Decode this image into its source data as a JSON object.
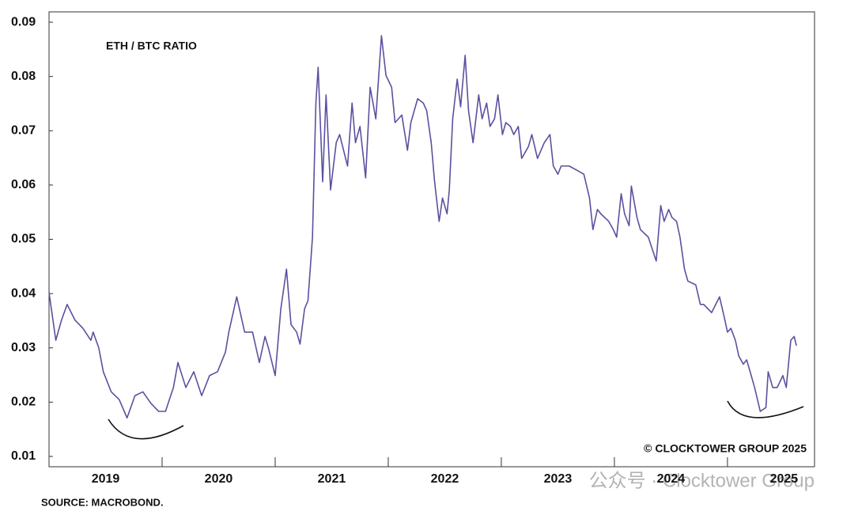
{
  "chart_data": {
    "type": "line",
    "title": "ETH / BTC RATIO",
    "annotations": [
      "© CLOCKTOWER GROUP 2025",
      "SOURCE: MACROBOND.",
      "公众号 · Clocktower Group"
    ],
    "series": [
      {
        "name": "ETH / BTC RATIO",
        "color": "#5a519f",
        "x": [
          2019.0,
          2019.06,
          2019.11,
          2019.16,
          2019.23,
          2019.3,
          2019.37,
          2019.39,
          2019.44,
          2019.48,
          2019.55,
          2019.62,
          2019.69,
          2019.76,
          2019.83,
          2019.9,
          2019.97,
          2020.03,
          2020.1,
          2020.14,
          2020.21,
          2020.28,
          2020.35,
          2020.42,
          2020.49,
          2020.56,
          2020.59,
          2020.66,
          2020.73,
          2020.8,
          2020.86,
          2020.91,
          2020.94,
          2021.0,
          2021.05,
          2021.1,
          2021.14,
          2021.19,
          2021.22,
          2021.26,
          2021.29,
          2021.33,
          2021.36,
          2021.38,
          2021.42,
          2021.45,
          2021.49,
          2021.54,
          2021.57,
          2021.64,
          2021.68,
          2021.71,
          2021.75,
          2021.8,
          2021.84,
          2021.89,
          2021.94,
          2021.98,
          2022.03,
          2022.06,
          2022.12,
          2022.17,
          2022.2,
          2022.26,
          2022.31,
          2022.34,
          2022.38,
          2022.41,
          2022.45,
          2022.48,
          2022.52,
          2022.54,
          2022.57,
          2022.61,
          2022.64,
          2022.68,
          2022.71,
          2022.75,
          2022.8,
          2022.83,
          2022.87,
          2022.9,
          2022.94,
          2022.97,
          2023.01,
          2023.04,
          2023.08,
          2023.11,
          2023.15,
          2023.18,
          2023.24,
          2023.27,
          2023.32,
          2023.38,
          2023.43,
          2023.46,
          2023.5,
          2023.53,
          2023.6,
          2023.67,
          2023.73,
          2023.78,
          2023.81,
          2023.85,
          2023.88,
          2023.95,
          2023.99,
          2024.02,
          2024.06,
          2024.09,
          2024.13,
          2024.15,
          2024.2,
          2024.23,
          2024.3,
          2024.37,
          2024.41,
          2024.44,
          2024.48,
          2024.51,
          2024.55,
          2024.58,
          2024.62,
          2024.65,
          2024.72,
          2024.76,
          2024.79,
          2024.86,
          2024.93,
          2024.97,
          2025.0,
          2025.03,
          2025.07,
          2025.1,
          2025.14,
          2025.17,
          2025.21,
          2025.24,
          2025.29,
          2025.34,
          2025.36,
          2025.4,
          2025.44,
          2025.49,
          2025.52,
          2025.56,
          2025.59,
          2025.61
        ],
        "values": [
          0.0402,
          0.0314,
          0.0351,
          0.038,
          0.0351,
          0.0336,
          0.0314,
          0.0329,
          0.03,
          0.0256,
          0.0219,
          0.0205,
          0.0171,
          0.0212,
          0.0219,
          0.0198,
          0.0183,
          0.0183,
          0.0227,
          0.0273,
          0.0227,
          0.0256,
          0.0212,
          0.0249,
          0.0256,
          0.0292,
          0.0329,
          0.0394,
          0.0329,
          0.0329,
          0.0273,
          0.0321,
          0.03,
          0.0249,
          0.0372,
          0.0445,
          0.0343,
          0.0329,
          0.0307,
          0.0372,
          0.0387,
          0.0504,
          0.0751,
          0.0817,
          0.0606,
          0.0766,
          0.0591,
          0.0678,
          0.0693,
          0.0635,
          0.0751,
          0.0678,
          0.0708,
          0.0613,
          0.078,
          0.0722,
          0.0875,
          0.0802,
          0.078,
          0.0715,
          0.0729,
          0.0664,
          0.0715,
          0.0759,
          0.0751,
          0.0737,
          0.0678,
          0.0606,
          0.0533,
          0.0576,
          0.0547,
          0.0591,
          0.0722,
          0.0795,
          0.0744,
          0.0839,
          0.0737,
          0.0678,
          0.0766,
          0.0722,
          0.0751,
          0.0708,
          0.0722,
          0.0766,
          0.0693,
          0.0715,
          0.0708,
          0.0693,
          0.0708,
          0.0649,
          0.0671,
          0.0693,
          0.0649,
          0.0678,
          0.0693,
          0.0635,
          0.062,
          0.0635,
          0.0635,
          0.0627,
          0.062,
          0.0576,
          0.0518,
          0.0555,
          0.0547,
          0.0533,
          0.0518,
          0.0504,
          0.0584,
          0.0547,
          0.0525,
          0.0598,
          0.054,
          0.0518,
          0.0504,
          0.046,
          0.0562,
          0.0533,
          0.0555,
          0.054,
          0.0533,
          0.0504,
          0.0445,
          0.0423,
          0.0416,
          0.038,
          0.038,
          0.0365,
          0.0394,
          0.0358,
          0.0329,
          0.0336,
          0.0314,
          0.0285,
          0.027,
          0.0278,
          0.0249,
          0.0227,
          0.0183,
          0.019,
          0.0256,
          0.0227,
          0.0227,
          0.0249,
          0.0227,
          0.0314,
          0.0321,
          0.0304
        ]
      }
    ],
    "xlim": [
      2019,
      2025.77
    ],
    "xticks": [
      {
        "value": 2019.5,
        "label": "2019"
      },
      {
        "value": 2020.5,
        "label": "2020"
      },
      {
        "value": 2021.5,
        "label": "2021"
      },
      {
        "value": 2022.5,
        "label": "2022"
      },
      {
        "value": 2023.5,
        "label": "2023"
      },
      {
        "value": 2024.5,
        "label": "2024"
      },
      {
        "value": 2025.5,
        "label": "2025"
      }
    ],
    "xtick_marks": [
      2020,
      2021,
      2022,
      2023,
      2024,
      2025
    ],
    "ylim": [
      0.0081,
      0.0919
    ],
    "yticks": [
      0.01,
      0.02,
      0.03,
      0.04,
      0.05,
      0.06,
      0.07,
      0.08,
      0.09
    ],
    "grid": false
  }
}
